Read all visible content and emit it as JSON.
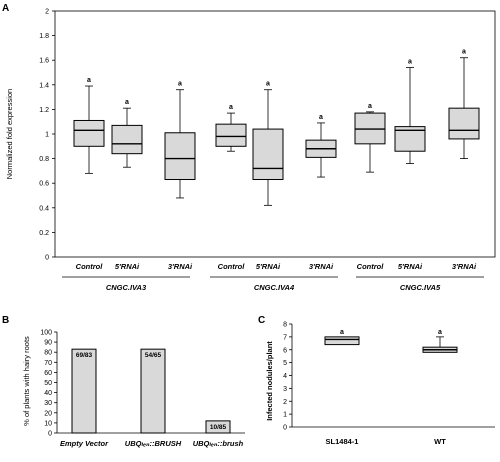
{
  "panels": [
    {
      "label": "A",
      "ylabel": "Normalized fold expression",
      "yticks": [
        "0",
        "0.2",
        "0.4",
        "0.6",
        "0.8",
        "1",
        "1.2",
        "1.4",
        "1.6",
        "1.8",
        "2"
      ],
      "groups": [
        {
          "label": "CNGC.IVA3",
          "categories": [
            "Control",
            "5'RNAi",
            "3'RNAi"
          ]
        },
        {
          "label": "CNGC.IVA4",
          "categories": [
            "Control",
            "5'RNAi",
            "3'RNAi"
          ]
        },
        {
          "label": "CNGC.IVA5",
          "categories": [
            "Control",
            "5'RNAi",
            "3'RNAi"
          ]
        }
      ],
      "significance": [
        "a",
        "a",
        "a",
        "a",
        "a",
        "a",
        "a",
        "a",
        "a"
      ]
    },
    {
      "label": "B",
      "ylabel": "% of plants with hairy roots",
      "yticks": [
        "0",
        "10",
        "20",
        "30",
        "40",
        "50",
        "60",
        "70",
        "80",
        "90",
        "100"
      ],
      "categories": [
        "Empty Vector",
        "UBQₗₑₙ::BRUSH",
        "UBQₗₑₙ::brush"
      ],
      "bar_labels": [
        "69/83",
        "54/65",
        "10/85"
      ]
    },
    {
      "label": "C",
      "ylabel": "Infected nodules/plant",
      "yticks": [
        "0",
        "1",
        "2",
        "3",
        "4",
        "5",
        "6",
        "7",
        "8"
      ],
      "categories": [
        "SL1484-1",
        "WT"
      ],
      "significance": [
        "a",
        "a"
      ]
    }
  ],
  "chart_data": [
    {
      "type": "box",
      "ylabel": "Normalized fold expression",
      "ylim": [
        0,
        2
      ],
      "groups": [
        "CNGC.IVA3",
        "CNGC.IVA4",
        "CNGC.IVA5"
      ],
      "categories": [
        "Control",
        "5'RNAi",
        "3'RNAi",
        "Control",
        "5'RNAi",
        "3'RNAi",
        "Control",
        "5'RNAi",
        "3'RNAi"
      ],
      "boxes": [
        {
          "min": 0.68,
          "q1": 0.9,
          "median": 1.03,
          "q3": 1.11,
          "max": 1.39
        },
        {
          "min": 0.73,
          "q1": 0.84,
          "median": 0.92,
          "q3": 1.07,
          "max": 1.21
        },
        {
          "min": 0.48,
          "q1": 0.63,
          "median": 0.8,
          "q3": 1.01,
          "max": 1.36
        },
        {
          "min": 0.86,
          "q1": 0.9,
          "median": 0.98,
          "q3": 1.08,
          "max": 1.17
        },
        {
          "min": 0.42,
          "q1": 0.63,
          "median": 0.72,
          "q3": 1.04,
          "max": 1.36
        },
        {
          "min": 0.65,
          "q1": 0.81,
          "median": 0.88,
          "q3": 0.95,
          "max": 1.09
        },
        {
          "min": 0.69,
          "q1": 0.92,
          "median": 1.04,
          "q3": 1.17,
          "max": 1.18
        },
        {
          "min": 0.76,
          "q1": 0.86,
          "median": 1.03,
          "q3": 1.06,
          "max": 1.54
        },
        {
          "min": 0.8,
          "q1": 0.96,
          "median": 1.03,
          "q3": 1.21,
          "max": 1.62
        }
      ]
    },
    {
      "type": "bar",
      "ylabel": "% of plants with hairy roots",
      "ylim": [
        0,
        100
      ],
      "categories": [
        "Empty Vector",
        "UBQₗₑₙ::BRUSH",
        "UBQₗₑₙ::brush"
      ],
      "values": [
        83,
        83,
        12
      ],
      "annotations": [
        "69/83",
        "54/65",
        "10/85"
      ]
    },
    {
      "type": "box",
      "ylabel": "Infected nodules/plant",
      "ylim": [
        0,
        8
      ],
      "categories": [
        "SL1484-1",
        "WT"
      ],
      "boxes": [
        {
          "min": 6.4,
          "q1": 6.4,
          "median": 6.8,
          "q3": 7.0,
          "max": 7.0
        },
        {
          "min": 5.8,
          "q1": 5.8,
          "median": 6.0,
          "q3": 6.2,
          "max": 7.0
        }
      ]
    }
  ]
}
